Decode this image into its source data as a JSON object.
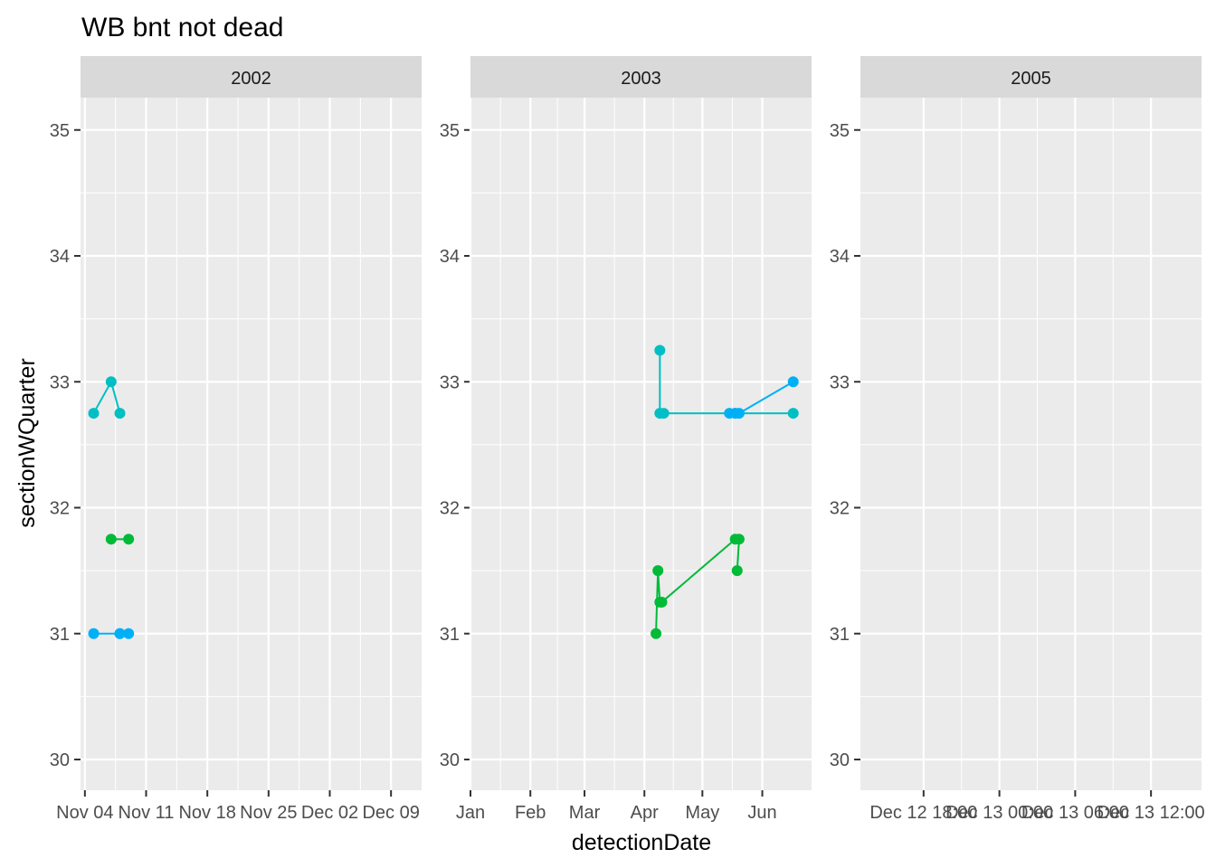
{
  "title": "WB bnt not dead",
  "xlabel": "detectionDate",
  "ylabel": "sectionWQuarter",
  "colors": {
    "teal": "#00BFC4",
    "green": "#00BA38",
    "blue": "#00B0F6",
    "panel_bg": "#EBEBEB",
    "strip_bg": "#D9D9D9",
    "grid": "#FFFFFF"
  },
  "chart_data": {
    "type": "line",
    "facet_by": "year",
    "ylim": [
      30,
      35
    ],
    "y_ticks": [
      30,
      31,
      32,
      33,
      34,
      35
    ],
    "grid": true,
    "legend": "none",
    "panels": [
      {
        "strip": "2002",
        "x_ticks": [
          "Nov 04",
          "Nov 11",
          "Nov 18",
          "Nov 25",
          "Dec 02",
          "Dec 09"
        ],
        "series": [
          {
            "color": "teal",
            "points": [
              [
                "2002-11-05",
                32.75
              ],
              [
                "2002-11-07",
                33.0
              ],
              [
                "2002-11-08",
                32.75
              ]
            ]
          },
          {
            "color": "green",
            "points": [
              [
                "2002-11-07",
                31.75
              ],
              [
                "2002-11-09",
                31.75
              ]
            ]
          },
          {
            "color": "blue",
            "points": [
              [
                "2002-11-05",
                31.0
              ],
              [
                "2002-11-08",
                31.0
              ],
              [
                "2002-11-08",
                31.0
              ],
              [
                "2002-11-09",
                31.0
              ]
            ]
          }
        ]
      },
      {
        "strip": "2003",
        "x_ticks": [
          "Jan",
          "Feb",
          "Mar",
          "Apr",
          "May",
          "Jun"
        ],
        "series": [
          {
            "color": "teal",
            "points": [
              [
                "2003-04-09",
                33.25
              ],
              [
                "2003-04-09",
                32.75
              ],
              [
                "2003-04-11",
                32.75
              ],
              [
                "2003-05-18",
                32.75
              ],
              [
                "2003-06-17",
                32.75
              ]
            ]
          },
          {
            "color": "blue",
            "points": [
              [
                "2003-05-15",
                32.75
              ],
              [
                "2003-05-18",
                32.75
              ],
              [
                "2003-05-20",
                32.75
              ],
              [
                "2003-06-17",
                33.0
              ]
            ]
          },
          {
            "color": "green",
            "points": [
              [
                "2003-04-07",
                31.0
              ],
              [
                "2003-04-08",
                31.5
              ],
              [
                "2003-04-09",
                31.25
              ],
              [
                "2003-04-10",
                31.25
              ],
              [
                "2003-05-18",
                31.75
              ],
              [
                "2003-05-20",
                31.75
              ],
              [
                "2003-05-19",
                31.5
              ]
            ]
          }
        ]
      },
      {
        "strip": "2005",
        "x_ticks": [
          "Dec 12 18:00",
          "Dec 13 00:00",
          "Dec 13 06:00",
          "Dec 13 12:00"
        ],
        "series": []
      }
    ]
  }
}
